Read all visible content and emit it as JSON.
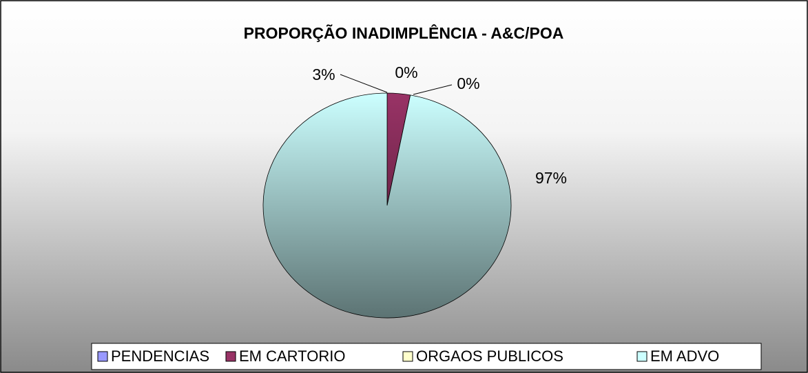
{
  "chart_data": {
    "type": "pie",
    "title": "PROPORÇÃO INADIMPLÊNCIA - A&C/POA",
    "categories": [
      "PENDENCIAS",
      "EM CARTORIO",
      "ORGAOS PUBLICOS",
      "EM ADVO"
    ],
    "values": [
      0,
      3,
      0,
      97
    ],
    "value_labels": [
      "0%",
      "3%",
      "0%",
      "97%"
    ],
    "colors": [
      "#9999ff",
      "#993366",
      "#ffffcc",
      "#ccffff"
    ],
    "legend": "bottom"
  }
}
